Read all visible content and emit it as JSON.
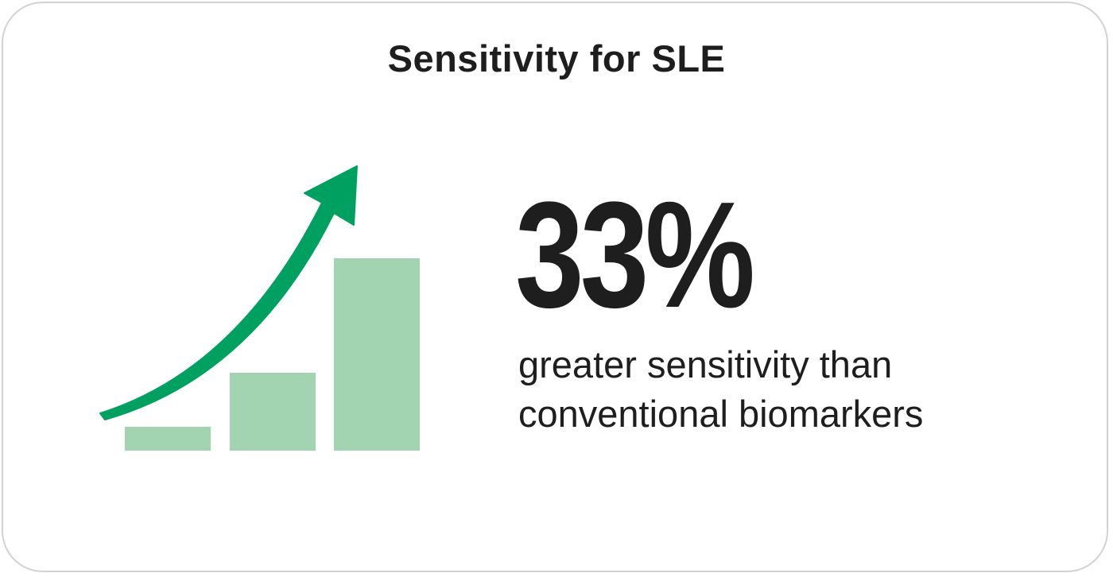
{
  "title": "Sensitivity for SLE",
  "stat": {
    "value": "33%",
    "description_line1": "greater sensitivity than",
    "description_line2": "conventional biomarkers"
  },
  "colors": {
    "bar": "#a3d4b1",
    "arrow": "#00a160",
    "text": "#1e1e1e",
    "border": "#d2d2d2"
  },
  "icons": [
    "rising-bar-chart-icon",
    "upward-trend-arrow-icon"
  ]
}
